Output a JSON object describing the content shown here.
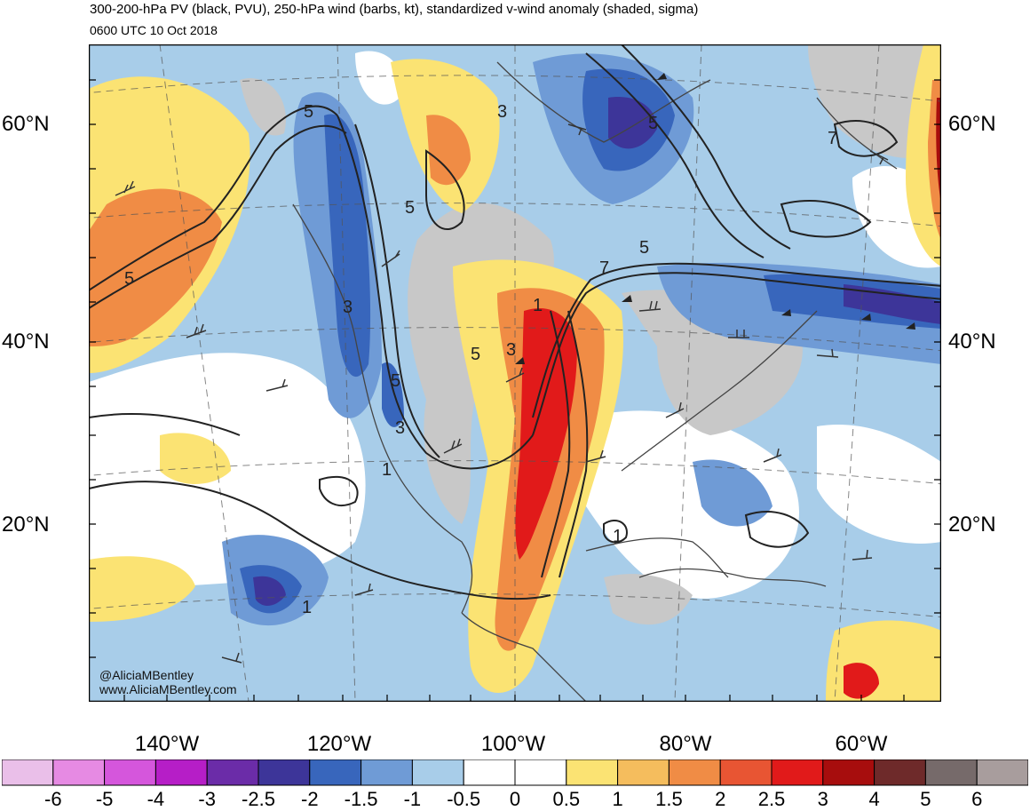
{
  "header": {
    "title": "300-200-hPa PV (black, PVU), 250-hPa wind (barbs, kt), standardized v-wind anomaly (shaded, sigma)",
    "valid_time": "0600 UTC 10 Oct 2018"
  },
  "axes": {
    "lat_labels_left": [
      "60°N",
      "40°N",
      "20°N"
    ],
    "lat_labels_right": [
      "60°N",
      "40°N",
      "20°N"
    ],
    "lon_labels": [
      "140°W",
      "120°W",
      "100°W",
      "80°W",
      "60°W"
    ]
  },
  "contour_labels": [
    "5",
    "5",
    "3",
    "7",
    "7",
    "5",
    "1",
    "3",
    "5",
    "3",
    "5",
    "5",
    "3",
    "1",
    "1",
    "1",
    "5"
  ],
  "colorbar": {
    "labels": [
      "-6",
      "-5",
      "-4",
      "-3",
      "-2.5",
      "-2",
      "-1.5",
      "-1",
      "-0.5",
      "0",
      "0.5",
      "1",
      "1.5",
      "2",
      "2.5",
      "3",
      "4",
      "5",
      "6"
    ],
    "colors": [
      "#eabfe9",
      "#e68ae3",
      "#d556dc",
      "#b61ec7",
      "#6b2ca8",
      "#3d3599",
      "#3866bc",
      "#6f9bd6",
      "#a8cde9",
      "#ffffff",
      "#ffffff",
      "#fbe373",
      "#f5bd5d",
      "#f08c45",
      "#e85533",
      "#e11a1a",
      "#a70d0d",
      "#6e2a2a",
      "#766a6a",
      "#a89d9d"
    ]
  },
  "credits": {
    "handle": "@AliciaMBentley",
    "website": "www.AliciaMBentley.com"
  }
}
